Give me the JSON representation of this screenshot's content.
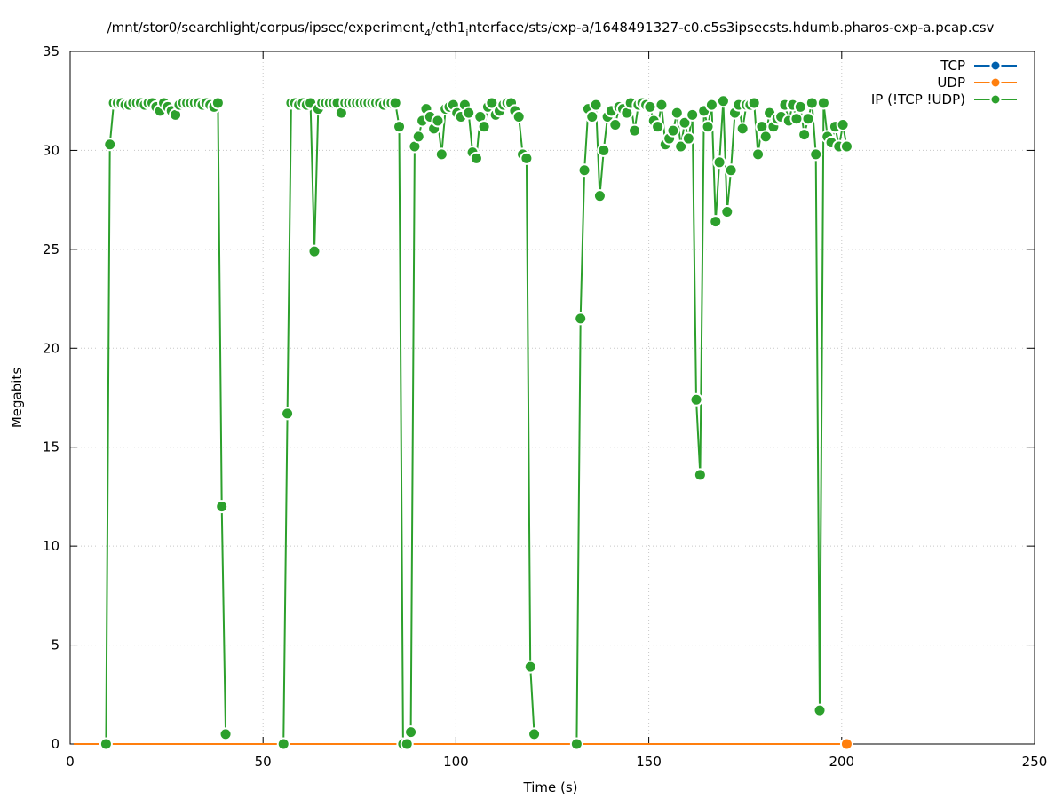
{
  "chart_data": {
    "type": "line",
    "title": {
      "prefix": "/mnt/stor0/searchlight/corpus/ipsec/experiment",
      "sub1": "4",
      "mid": "/eth1",
      "sub2": "i",
      "suffix": "nterface/sts/exp-a/1648491327-c0.c5s3ipsecsts.hdumb.pharos-exp-a.pcap.csv"
    },
    "xlabel": "Time (s)",
    "ylabel": "Megabits",
    "xlim": [
      0,
      250
    ],
    "ylim": [
      0,
      35
    ],
    "xticks": [
      0,
      50,
      100,
      150,
      200,
      250
    ],
    "yticks": [
      0,
      5,
      10,
      15,
      20,
      25,
      30,
      35
    ],
    "grid": true,
    "legend_position": "top-right",
    "series": [
      {
        "name": "TCP",
        "color": "#0060ad",
        "x": [
          1,
          2,
          3,
          4,
          5,
          6,
          7,
          8,
          9,
          10,
          11,
          12,
          13,
          14,
          15,
          16,
          17,
          18,
          19,
          20,
          21,
          22,
          23,
          24,
          25,
          26,
          27,
          28,
          29,
          30,
          31,
          32,
          33,
          34,
          35,
          36,
          37,
          38,
          39,
          40,
          41,
          42,
          43,
          44,
          45,
          46,
          47,
          48,
          49,
          50,
          51,
          52,
          53,
          54,
          55,
          56,
          57,
          58,
          59,
          60,
          61,
          62,
          63,
          64,
          65,
          66,
          67,
          68,
          69,
          70,
          71,
          72,
          73,
          74,
          75,
          76,
          77,
          78,
          79,
          80,
          81,
          82,
          83,
          84,
          85,
          86,
          87,
          88,
          89,
          90,
          91,
          92,
          93,
          94,
          95,
          96,
          97,
          98,
          99,
          100,
          101,
          102,
          103,
          104,
          105,
          106,
          107,
          108,
          109,
          110,
          111,
          112,
          113,
          114,
          115,
          116,
          117,
          118,
          119,
          120,
          121,
          122,
          123,
          124,
          125,
          126,
          127,
          128,
          129,
          130,
          131,
          132,
          133,
          134,
          135,
          136,
          137,
          138,
          139,
          140,
          141,
          142,
          143,
          144,
          145,
          146,
          147,
          148,
          149,
          150,
          151,
          152,
          153,
          154,
          155,
          156,
          157,
          158,
          159,
          160,
          161,
          162,
          163,
          164,
          165,
          166,
          167,
          168,
          169,
          170,
          171,
          172,
          173,
          174,
          175,
          176,
          177,
          178,
          179,
          180,
          181,
          182,
          183,
          184,
          185,
          186,
          187,
          188,
          189,
          190,
          191,
          192,
          193,
          194,
          195,
          196,
          197,
          198,
          199,
          200,
          201,
          202
        ],
        "values": [
          0,
          0,
          0,
          0,
          0,
          0,
          0,
          0,
          0,
          0,
          0,
          0,
          0,
          0,
          0,
          0,
          0,
          0,
          0,
          0,
          0,
          0,
          0,
          0,
          0,
          0,
          0,
          0,
          0,
          0,
          0,
          0,
          0,
          0,
          0,
          0,
          0,
          0,
          0,
          0,
          0,
          0,
          0,
          0,
          0,
          0,
          0,
          0,
          0,
          0,
          0,
          0,
          0,
          0,
          0,
          0,
          0,
          0,
          0,
          0,
          0,
          0,
          0,
          0,
          0,
          0,
          0,
          0,
          0,
          0,
          0,
          0,
          0,
          0,
          0,
          0,
          0,
          0,
          0,
          0,
          0,
          0,
          0,
          0,
          0,
          0,
          0,
          0,
          0,
          0,
          0,
          0,
          0,
          0,
          0,
          0,
          0,
          0,
          0,
          0,
          0,
          0,
          0,
          0,
          0,
          0,
          0,
          0,
          0,
          0,
          0,
          0,
          0,
          0,
          0,
          0,
          0,
          0,
          0,
          0,
          0,
          0,
          0,
          0,
          0,
          0,
          0,
          0,
          0,
          0,
          0,
          0,
          0,
          0,
          0,
          0,
          0,
          0,
          0,
          0,
          0,
          0,
          0,
          0,
          0,
          0,
          0,
          0,
          0,
          0,
          0,
          0,
          0,
          0,
          0,
          0,
          0,
          0,
          0,
          0,
          0,
          0,
          0,
          0,
          0,
          0,
          0,
          0,
          0,
          0,
          0,
          0,
          0,
          0,
          0,
          0,
          0,
          0,
          0,
          0,
          0,
          0,
          0,
          0,
          0,
          0,
          0,
          0,
          0,
          0,
          0,
          0,
          0,
          0,
          0,
          0,
          0,
          0,
          0,
          0,
          0,
          0
        ]
      },
      {
        "name": "UDP",
        "color": "#ff7f0e",
        "x": [
          1,
          2,
          3,
          4,
          5,
          6,
          7,
          8,
          9,
          10,
          11,
          12,
          13,
          14,
          15,
          16,
          17,
          18,
          19,
          20,
          21,
          22,
          23,
          24,
          25,
          26,
          27,
          28,
          29,
          30,
          31,
          32,
          33,
          34,
          35,
          36,
          37,
          38,
          39,
          40,
          41,
          42,
          43,
          44,
          45,
          46,
          47,
          48,
          49,
          50,
          51,
          52,
          53,
          54,
          55,
          56,
          57,
          58,
          59,
          60,
          61,
          62,
          63,
          64,
          65,
          66,
          67,
          68,
          69,
          70,
          71,
          72,
          73,
          74,
          75,
          76,
          77,
          78,
          79,
          80,
          81,
          82,
          83,
          84,
          85,
          86,
          87,
          88,
          89,
          90,
          91,
          92,
          93,
          94,
          95,
          96,
          97,
          98,
          99,
          100,
          101,
          102,
          103,
          104,
          105,
          106,
          107,
          108,
          109,
          110,
          111,
          112,
          113,
          114,
          115,
          116,
          117,
          118,
          119,
          120,
          121,
          122,
          123,
          124,
          125,
          126,
          127,
          128,
          129,
          130,
          131,
          132,
          133,
          134,
          135,
          136,
          137,
          138,
          139,
          140,
          141,
          142,
          143,
          144,
          145,
          146,
          147,
          148,
          149,
          150,
          151,
          152,
          153,
          154,
          155,
          156,
          157,
          158,
          159,
          160,
          161,
          162,
          163,
          164,
          165,
          166,
          167,
          168,
          169,
          170,
          171,
          172,
          173,
          174,
          175,
          176,
          177,
          178,
          179,
          180,
          181,
          182,
          183,
          184,
          185,
          186,
          187,
          188,
          189,
          190,
          191,
          192,
          193,
          194,
          195,
          196,
          197,
          198,
          199,
          200,
          201,
          202
        ],
        "values": [
          0,
          0,
          0,
          0,
          0,
          0,
          0,
          0,
          0,
          0,
          0,
          0,
          0,
          0,
          0,
          0,
          0,
          0,
          0,
          0,
          0,
          0,
          0,
          0,
          0,
          0,
          0,
          0,
          0,
          0,
          0,
          0,
          0,
          0,
          0,
          0,
          0,
          0,
          0,
          0,
          0,
          0,
          0,
          0,
          0,
          0,
          0,
          0,
          0,
          0,
          0,
          0,
          0,
          0,
          0,
          0,
          0,
          0,
          0,
          0,
          0,
          0,
          0,
          0,
          0,
          0,
          0,
          0,
          0,
          0,
          0,
          0,
          0,
          0,
          0,
          0,
          0,
          0,
          0,
          0,
          0,
          0,
          0,
          0,
          0,
          0,
          0,
          0,
          0,
          0,
          0,
          0,
          0,
          0,
          0,
          0,
          0,
          0,
          0,
          0,
          0,
          0,
          0,
          0,
          0,
          0,
          0,
          0,
          0,
          0,
          0,
          0,
          0,
          0,
          0,
          0,
          0,
          0,
          0,
          0,
          0,
          0,
          0,
          0,
          0,
          0,
          0,
          0,
          0,
          0,
          0,
          0,
          0,
          0,
          0,
          0,
          0,
          0,
          0,
          0,
          0,
          0,
          0,
          0,
          0,
          0,
          0,
          0,
          0,
          0,
          0,
          0,
          0,
          0,
          0,
          0,
          0,
          0,
          0,
          0,
          0,
          0,
          0,
          0,
          0,
          0,
          0,
          0,
          0,
          0,
          0,
          0,
          0,
          0,
          0,
          0,
          0,
          0,
          0,
          0,
          0,
          0,
          0,
          0,
          0,
          0,
          0,
          0,
          0,
          0,
          0,
          0,
          0,
          0,
          0,
          0,
          0,
          0,
          0,
          0,
          0,
          0
        ]
      },
      {
        "name": "IP (!TCP  !UDP)",
        "color": "#2ca02c",
        "segments": [
          {
            "x": [
              9.3,
              10.3,
              11.3,
              12.3,
              13.3,
              14.3,
              15.3,
              16.3,
              17.3,
              18.3,
              19.3,
              20.3,
              21.3,
              22.3,
              23.3,
              24.3,
              25.3,
              26.3,
              27.3,
              28.3,
              29.3,
              30.3,
              31.3,
              32.3,
              33.3,
              34.3,
              35.3,
              36.3,
              37.3,
              38.3,
              39.3,
              40.3
            ],
            "values": [
              0,
              30.3,
              32.4,
              32.4,
              32.4,
              32.3,
              32.3,
              32.4,
              32.4,
              32.4,
              32.3,
              32.4,
              32.4,
              32.2,
              32.0,
              32.4,
              32.2,
              32.0,
              31.8,
              32.3,
              32.4,
              32.4,
              32.4,
              32.4,
              32.4,
              32.3,
              32.4,
              32.3,
              32.2,
              32.4,
              12.0,
              0.5
            ]
          },
          {
            "x": [
              55.3,
              56.3,
              57.3,
              58.3,
              59.3,
              60.3,
              61.3,
              62.3,
              63.3,
              64.3,
              65.3,
              66.3,
              67.3,
              68.3,
              69.3,
              70.3,
              71.3,
              72.3,
              73.3,
              74.3,
              75.3,
              76.3,
              77.3,
              78.3,
              79.3,
              80.3,
              81.3,
              82.3,
              83.3,
              84.3,
              85.3,
              86.3,
              87.3
            ],
            "values": [
              0,
              16.7,
              32.4,
              32.4,
              32.3,
              32.4,
              32.3,
              32.4,
              24.9,
              32.1,
              32.4,
              32.4,
              32.4,
              32.4,
              32.4,
              31.9,
              32.4,
              32.4,
              32.4,
              32.4,
              32.4,
              32.4,
              32.4,
              32.4,
              32.4,
              32.4,
              32.3,
              32.4,
              32.4,
              32.4,
              31.2,
              0,
              0
            ]
          },
          {
            "x": [
              88.3,
              89.3,
              90.3,
              91.3,
              92.3,
              93.3,
              94.3,
              95.3,
              96.3,
              97.3,
              98.3,
              99.3,
              100.3,
              101.3,
              102.3,
              103.3,
              104.3,
              105.3,
              106.3,
              107.3,
              108.3,
              109.3,
              110.3,
              111.3,
              112.3,
              113.3,
              114.3,
              115.3,
              116.3,
              117.3,
              118.3,
              119.3,
              120.3
            ],
            "values": [
              0.6,
              30.2,
              30.7,
              31.5,
              32.1,
              31.7,
              31.1,
              31.5,
              29.8,
              32.1,
              32.2,
              32.3,
              31.9,
              31.7,
              32.3,
              31.9,
              29.9,
              29.6,
              31.7,
              31.2,
              32.2,
              32.4,
              31.8,
              32.0,
              32.3,
              32.4,
              32.4,
              32.0,
              31.7,
              29.8,
              29.6,
              3.9,
              0.5
            ]
          },
          {
            "x": [
              131.3,
              132.3,
              133.3,
              134.3,
              135.3,
              136.3,
              137.3,
              138.3,
              139.3,
              140.3,
              141.3,
              142.3,
              143.3,
              144.3,
              145.3,
              146.3,
              147.3,
              148.3,
              149.3,
              150.3,
              151.3,
              152.3,
              153.3,
              154.3,
              155.3,
              156.3,
              157.3,
              158.3,
              159.3,
              160.3,
              161.3,
              162.3,
              163.3,
              164.3,
              165.3,
              166.3,
              167.3,
              168.3,
              169.3,
              170.3,
              171.3,
              172.3,
              173.3,
              174.3,
              175.3,
              176.3,
              177.3,
              178.3,
              179.3,
              180.3,
              181.3,
              182.3,
              183.3,
              184.3,
              185.3,
              186.3,
              187.3,
              188.3,
              189.3,
              190.3,
              191.3,
              192.3,
              193.3,
              194.3,
              195.3,
              196.3,
              197.3,
              198.3,
              199.3,
              200.3,
              201.3
            ],
            "values": [
              0,
              21.5,
              29.0,
              32.1,
              31.7,
              32.3,
              27.7,
              30.0,
              31.7,
              32.0,
              31.3,
              32.2,
              32.1,
              31.9,
              32.4,
              31.0,
              32.3,
              32.4,
              32.3,
              32.2,
              31.5,
              31.2,
              32.3,
              30.3,
              30.6,
              31.0,
              31.9,
              30.2,
              31.4,
              30.6,
              31.8,
              17.4,
              13.6,
              32.0,
              31.2,
              32.3,
              26.4,
              29.4,
              32.5,
              26.9,
              29.0,
              31.9,
              32.3,
              31.1,
              32.3,
              32.3,
              32.4,
              29.8,
              31.2,
              30.7,
              31.9,
              31.2,
              31.6,
              31.7,
              32.3,
              31.5,
              32.3,
              31.6,
              32.2,
              30.8,
              31.6,
              32.4,
              29.8,
              1.7,
              32.4,
              30.7,
              30.4,
              31.2,
              30.2,
              31.3,
              30.2
            ]
          }
        ]
      }
    ]
  }
}
